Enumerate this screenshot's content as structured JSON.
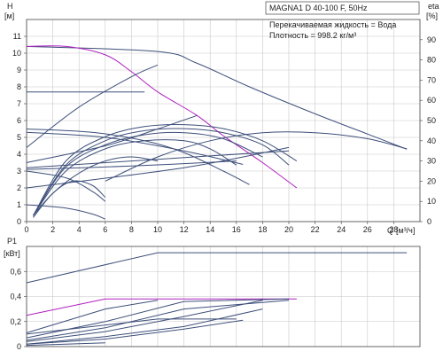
{
  "chart_data": [
    {
      "type": "line",
      "title": "MAGNA1 D 40-100 F, 50Hz",
      "annotations": [
        "Перекачиваемая жидкость = Вода",
        "Плотность = 998.2 кг/м³"
      ],
      "ylabel": "H",
      "yunit": "[м]",
      "y2label": "eta",
      "y2unit": "[%]",
      "xlabel": "Q",
      "xunit": "[м³/ч]",
      "xlim": [
        0,
        30
      ],
      "ylim": [
        0,
        12
      ],
      "y2lim": [
        0,
        100
      ],
      "xticks": [
        "0",
        "2",
        "4",
        "6",
        "8",
        "10",
        "12",
        "14",
        "16",
        "18",
        "20",
        "22",
        "24",
        "26",
        "28"
      ],
      "yticks": [
        "0",
        "1",
        "2",
        "3",
        "4",
        "5",
        "6",
        "7",
        "8",
        "9",
        "10",
        "11"
      ],
      "y2ticks": [
        "0",
        "10",
        "20",
        "30",
        "40",
        "50",
        "60",
        "70",
        "80",
        "90"
      ],
      "grid": true,
      "colors": {
        "curves": "#3d4f7a",
        "highlight": "#b020c0",
        "grid": "#c8c8c8",
        "axis": "#444444"
      },
      "series": [
        {
          "color": "#3d4f7a",
          "axis": "H",
          "x": [
            0,
            10,
            13,
            17,
            22,
            26,
            29
          ],
          "y": [
            10.4,
            10.1,
            9.4,
            8.0,
            6.4,
            5.2,
            4.3
          ]
        },
        {
          "color": "#b020c0",
          "axis": "H",
          "x": [
            0,
            3,
            6,
            8,
            10,
            13,
            15,
            18,
            20.6
          ],
          "y": [
            10.4,
            10.4,
            9.9,
            8.9,
            7.7,
            6.3,
            5.1,
            3.5,
            2.0
          ]
        },
        {
          "color": "#3d4f7a",
          "axis": "H",
          "x": [
            0,
            6,
            9
          ],
          "y": [
            7.7,
            7.7,
            7.7
          ]
        },
        {
          "color": "#3d4f7a",
          "axis": "H",
          "x": [
            0,
            4,
            8,
            10
          ],
          "y": [
            4.4,
            6.8,
            8.6,
            9.3
          ]
        },
        {
          "color": "#3d4f7a",
          "axis": "H",
          "x": [
            0,
            6,
            10,
            13
          ],
          "y": [
            3.5,
            4.5,
            5.5,
            6.3
          ]
        },
        {
          "color": "#3d4f7a",
          "axis": "H",
          "x": [
            0,
            5,
            9,
            12,
            15,
            17
          ],
          "y": [
            5.5,
            5.3,
            4.8,
            4.1,
            3.0,
            2.2
          ]
        },
        {
          "color": "#3d4f7a",
          "axis": "H",
          "x": [
            0,
            6,
            12,
            16.5
          ],
          "y": [
            5.3,
            5.0,
            4.2,
            3.4
          ]
        },
        {
          "color": "#3d4f7a",
          "axis": "H",
          "x": [
            0,
            3,
            5,
            6
          ],
          "y": [
            3.0,
            2.6,
            1.8,
            1.2
          ]
        },
        {
          "color": "#3d4f7a",
          "axis": "H",
          "x": [
            0,
            3,
            5,
            6
          ],
          "y": [
            1.0,
            0.8,
            0.45,
            0.15
          ]
        },
        {
          "color": "#3d4f7a",
          "axis": "H",
          "x": [
            0,
            8,
            16
          ],
          "y": [
            3.1,
            3.3,
            3.6
          ]
        },
        {
          "color": "#3d4f7a",
          "axis": "H",
          "x": [
            0,
            10,
            20
          ],
          "y": [
            3.2,
            3.7,
            4.2
          ]
        },
        {
          "color": "#3d4f7a",
          "axis": "H",
          "x": [
            0,
            12,
            20
          ],
          "y": [
            2.0,
            3.2,
            4.4
          ]
        },
        {
          "color": "#3d4f7a",
          "axis": "eta",
          "x": [
            0.5,
            3,
            6,
            9,
            12,
            15,
            18,
            20.6
          ],
          "y": [
            3,
            30,
            42,
            47,
            48,
            46,
            40,
            30
          ]
        },
        {
          "color": "#3d4f7a",
          "axis": "eta",
          "x": [
            0.5,
            3,
            6,
            9,
            12,
            15,
            18,
            20
          ],
          "y": [
            3,
            28,
            40,
            45,
            46,
            44,
            38,
            28
          ]
        },
        {
          "color": "#3d4f7a",
          "axis": "eta",
          "x": [
            0.5,
            3,
            6,
            9,
            12,
            15,
            18
          ],
          "y": [
            3,
            27,
            38,
            43,
            44,
            41,
            32
          ]
        },
        {
          "color": "#3d4f7a",
          "axis": "eta",
          "x": [
            0.5,
            3,
            6,
            9,
            12,
            14,
            16
          ],
          "y": [
            3,
            25,
            36,
            40,
            40,
            36,
            28
          ]
        },
        {
          "color": "#3d4f7a",
          "axis": "eta",
          "x": [
            0.5,
            2,
            4,
            6,
            8,
            10
          ],
          "y": [
            3,
            14,
            24,
            30,
            32,
            30
          ]
        },
        {
          "color": "#3d4f7a",
          "axis": "eta",
          "x": [
            0.5,
            2,
            3.5,
            5,
            6
          ],
          "y": [
            2,
            14,
            20,
            18,
            12
          ]
        },
        {
          "color": "#3d4f7a",
          "axis": "eta",
          "x": [
            6,
            10,
            14,
            18,
            22,
            26,
            29
          ],
          "y": [
            20,
            32,
            40,
            44,
            44,
            41,
            36
          ]
        }
      ]
    },
    {
      "type": "line",
      "ylabel": "P1",
      "yunit": "[кВт]",
      "xlim": [
        0,
        30
      ],
      "ylim": [
        0,
        0.8
      ],
      "yticks": [
        "0",
        "0,2",
        "0,4",
        "0,6"
      ],
      "grid": true,
      "series": [
        {
          "color": "#3d4f7a",
          "x": [
            0,
            10,
            29
          ],
          "y": [
            0.51,
            0.75,
            0.75
          ]
        },
        {
          "color": "#b020c0",
          "x": [
            0,
            6,
            20.6
          ],
          "y": [
            0.25,
            0.38,
            0.38
          ]
        },
        {
          "color": "#3d4f7a",
          "x": [
            0,
            6,
            12,
            20
          ],
          "y": [
            0.07,
            0.2,
            0.36,
            0.38
          ]
        },
        {
          "color": "#3d4f7a",
          "x": [
            0,
            6,
            12,
            20
          ],
          "y": [
            0.05,
            0.15,
            0.3,
            0.37
          ]
        },
        {
          "color": "#3d4f7a",
          "x": [
            0,
            6,
            12,
            18
          ],
          "y": [
            0.04,
            0.12,
            0.24,
            0.37
          ]
        },
        {
          "color": "#3d4f7a",
          "x": [
            0,
            6,
            12,
            18
          ],
          "y": [
            0.02,
            0.08,
            0.16,
            0.3
          ]
        },
        {
          "color": "#3d4f7a",
          "x": [
            0,
            6,
            12,
            16.5
          ],
          "y": [
            0.02,
            0.06,
            0.14,
            0.21
          ]
        },
        {
          "color": "#3d4f7a",
          "x": [
            0,
            3,
            6
          ],
          "y": [
            0.01,
            0.02,
            0.03
          ]
        },
        {
          "color": "#3d4f7a",
          "x": [
            0,
            6,
            10
          ],
          "y": [
            0.11,
            0.3,
            0.37
          ]
        },
        {
          "color": "#3d4f7a",
          "x": [
            0,
            10,
            16
          ],
          "y": [
            0.1,
            0.22,
            0.22
          ]
        }
      ]
    }
  ]
}
